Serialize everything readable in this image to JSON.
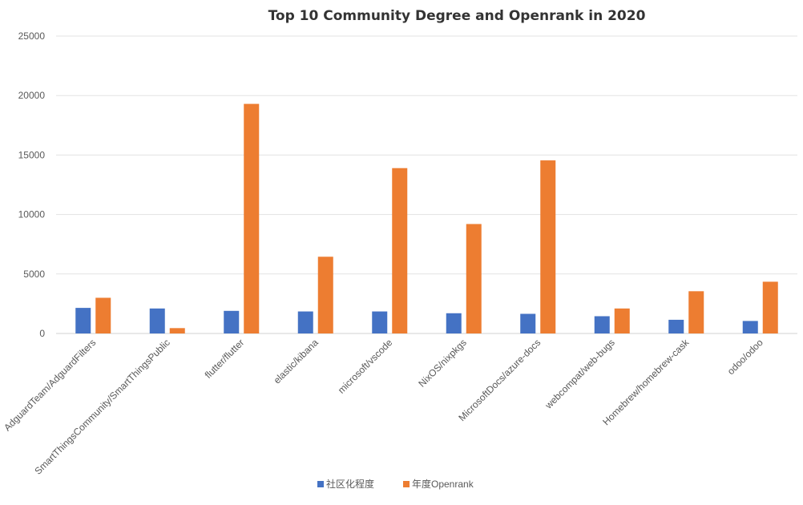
{
  "chart_data": {
    "type": "bar",
    "title": "Top 10 Community Degree and Openrank in 2020",
    "xlabel": "",
    "ylabel": "",
    "ylim": [
      0,
      25000
    ],
    "yticks": [
      0,
      5000,
      10000,
      15000,
      20000,
      25000
    ],
    "grid": true,
    "legend_position": "bottom",
    "categories": [
      "AdguardTeam/AdguardFilters",
      "SmartThingsCommunity/SmartThingsPublic",
      "flutter/flutter",
      "elastic/kibana",
      "microsoft/vscode",
      "NixOS/nixpkgs",
      "MicrosoftDocs/azure-docs",
      "webcompat/web-bugs",
      "Homebrew/homebrew-cask",
      "odoo/odoo"
    ],
    "series": [
      {
        "name": "社区化程度",
        "color": "#4472c4",
        "values": [
          2150,
          2100,
          1900,
          1850,
          1850,
          1700,
          1650,
          1450,
          1150,
          1050
        ]
      },
      {
        "name": "年度Openrank",
        "color": "#ed7d31",
        "values": [
          3000,
          450,
          19300,
          6450,
          13900,
          9200,
          14550,
          2100,
          3550,
          4350
        ]
      }
    ]
  }
}
